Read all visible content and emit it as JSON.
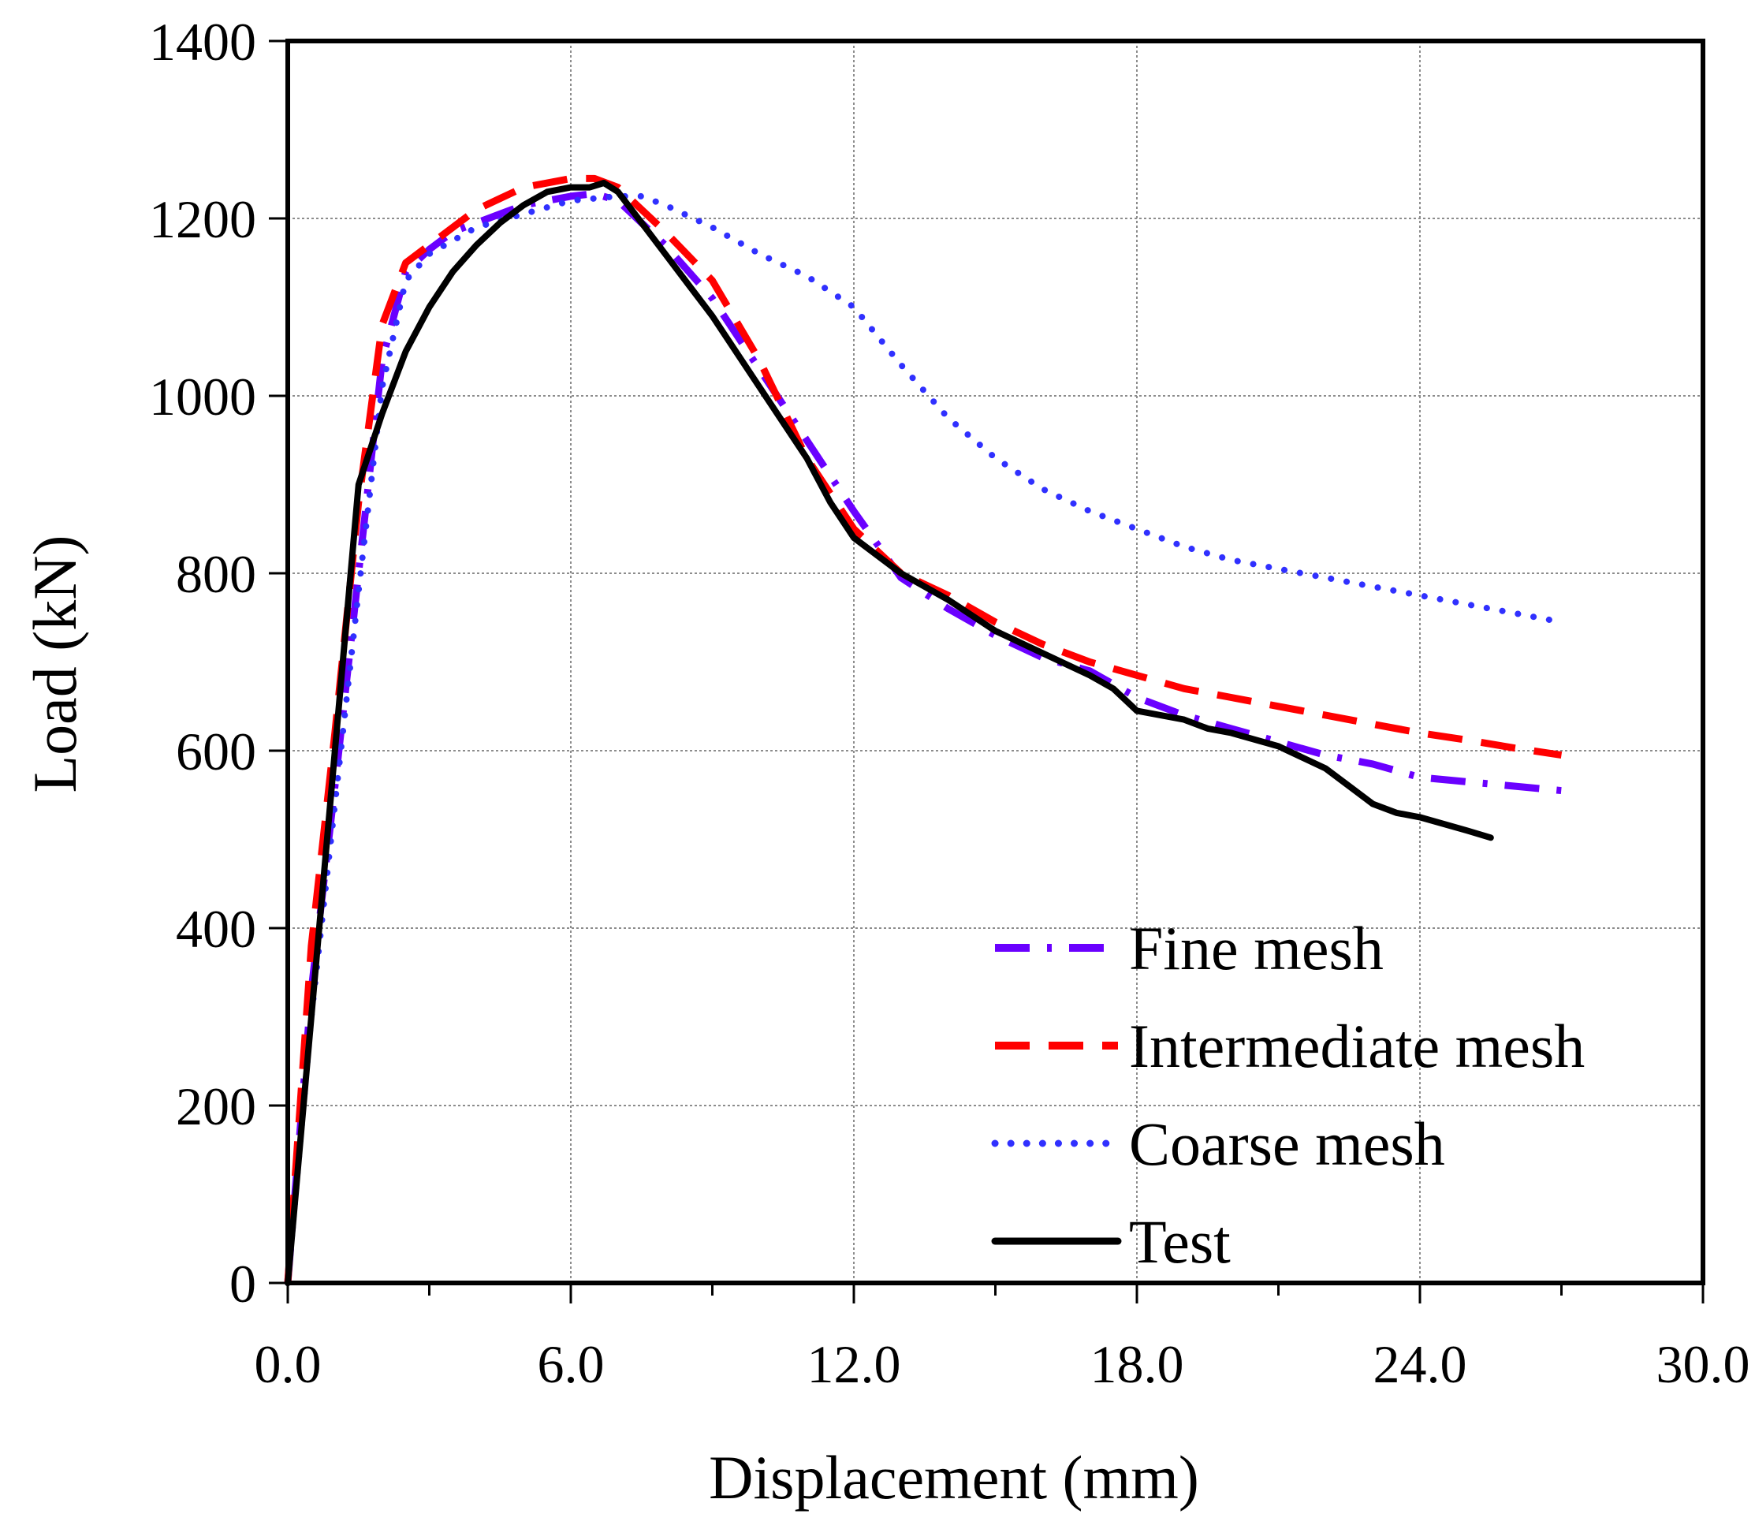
{
  "chart_data": {
    "type": "line",
    "title": "",
    "xlabel": "Displacement (mm)",
    "ylabel": "Load (kN)",
    "xlim": [
      0,
      30
    ],
    "ylim": [
      0,
      1400
    ],
    "xticks": [
      0,
      6,
      12,
      18,
      24,
      30
    ],
    "xtick_labels": [
      "0.0",
      "6.0",
      "12.0",
      "18.0",
      "24.0",
      "30.0"
    ],
    "xminor": [
      3,
      9,
      15,
      21,
      27
    ],
    "yticks": [
      0,
      200,
      400,
      600,
      800,
      1000,
      1200,
      1400
    ],
    "ytick_labels": [
      "0",
      "200",
      "400",
      "600",
      "800",
      "1000",
      "1200",
      "1400"
    ],
    "grid": true,
    "legend_position": "bottom-right",
    "series": [
      {
        "name": "Fine mesh",
        "style": "dash-dot",
        "color": "#6a00ff",
        "x": [
          0,
          0.5,
          1.0,
          1.5,
          2.0,
          2.5,
          3.0,
          3.5,
          4.0,
          5.0,
          6.0,
          6.5,
          7.0,
          8.0,
          9.0,
          10.0,
          11.0,
          12.0,
          13.0,
          14.0,
          15.0,
          16.0,
          17.0,
          18.0,
          19.0,
          20.0,
          21.0,
          22.0,
          23.0,
          24.0,
          25.0,
          26.0,
          27.0
        ],
        "y": [
          0,
          330,
          560,
          800,
          1040,
          1140,
          1165,
          1185,
          1195,
          1215,
          1225,
          1228,
          1220,
          1170,
          1110,
          1030,
          950,
          870,
          795,
          760,
          730,
          705,
          690,
          660,
          640,
          625,
          610,
          595,
          585,
          570,
          565,
          560,
          555
        ]
      },
      {
        "name": "Intermediate mesh",
        "style": "dashed",
        "color": "#ff0000",
        "x": [
          0,
          0.5,
          1.0,
          1.5,
          2.0,
          2.5,
          3.0,
          4.0,
          5.0,
          6.0,
          6.5,
          7.0,
          8.0,
          9.0,
          10.0,
          11.0,
          12.0,
          13.0,
          14.0,
          15.0,
          16.0,
          17.0,
          18.0,
          19.0,
          20.0,
          21.0,
          22.0,
          23.0,
          24.0,
          25.0,
          26.0,
          27.0
        ],
        "y": [
          0,
          380,
          620,
          880,
          1080,
          1150,
          1170,
          1210,
          1235,
          1245,
          1245,
          1235,
          1185,
          1130,
          1040,
          930,
          850,
          800,
          775,
          745,
          720,
          700,
          685,
          670,
          660,
          650,
          640,
          630,
          620,
          612,
          603,
          595
        ]
      },
      {
        "name": "Coarse mesh",
        "style": "dotted",
        "color": "#3030ff",
        "x": [
          0,
          0.5,
          1.0,
          1.5,
          2.0,
          2.5,
          3.0,
          4.0,
          5.0,
          6.0,
          7.0,
          7.5,
          8.0,
          9.0,
          10.0,
          11.0,
          12.0,
          13.0,
          14.0,
          15.0,
          16.0,
          17.0,
          18.0,
          19.0,
          20.0,
          21.0,
          22.0,
          23.0,
          24.0,
          25.0,
          26.0,
          27.0
        ],
        "y": [
          0,
          300,
          540,
          780,
          1010,
          1130,
          1160,
          1190,
          1205,
          1220,
          1225,
          1225,
          1215,
          1190,
          1160,
          1135,
          1100,
          1035,
          975,
          930,
          895,
          870,
          850,
          830,
          815,
          805,
          795,
          785,
          775,
          765,
          755,
          745
        ]
      },
      {
        "name": "Test",
        "style": "solid",
        "color": "#000000",
        "x": [
          0,
          0.5,
          1.0,
          1.5,
          2.0,
          2.5,
          3.0,
          3.5,
          4.0,
          4.5,
          5.0,
          5.5,
          6.0,
          6.4,
          6.7,
          7.0,
          7.5,
          8.0,
          8.5,
          9.0,
          10.0,
          11.0,
          11.5,
          12.0,
          13.0,
          14.0,
          15.0,
          16.0,
          17.0,
          17.5,
          18.0,
          19.0,
          19.5,
          20.0,
          21.0,
          22.0,
          22.5,
          23.0,
          23.5,
          24.0,
          25.0,
          25.5
        ],
        "y": [
          0,
          300,
          600,
          900,
          980,
          1050,
          1100,
          1140,
          1170,
          1195,
          1215,
          1230,
          1235,
          1235,
          1240,
          1230,
          1195,
          1160,
          1125,
          1090,
          1010,
          930,
          880,
          840,
          800,
          770,
          735,
          710,
          685,
          670,
          645,
          635,
          625,
          620,
          605,
          580,
          560,
          540,
          530,
          525,
          510,
          502
        ]
      }
    ]
  }
}
